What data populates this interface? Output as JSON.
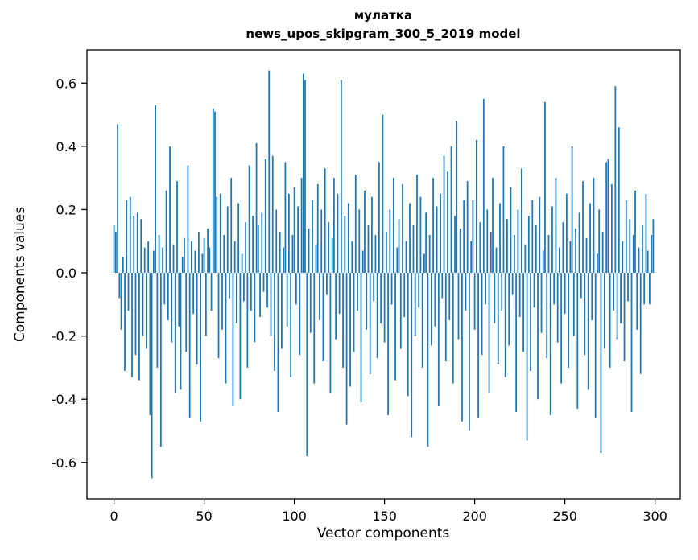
{
  "figure": {
    "title_line1": "мулатка",
    "title_line2": "news_upos_skipgram_300_5_2019 model",
    "xlabel": "Vector components",
    "ylabel": "Components values"
  },
  "chart_data": {
    "type": "bar",
    "title": "мулатка\nnews_upos_skipgram_300_5_2019 model",
    "xlabel": "Vector components",
    "ylabel": "Components values",
    "bar_color": "#1f77b4",
    "grid": false,
    "legend": "none",
    "x_start": 0,
    "xlim": [
      -15,
      314
    ],
    "ylim": [
      -0.715,
      0.705
    ],
    "x_ticks": [
      0,
      50,
      100,
      150,
      200,
      250,
      300
    ],
    "y_ticks": [
      -0.6,
      -0.4,
      -0.2,
      0.0,
      0.2,
      0.4,
      0.6
    ],
    "y_tick_labels": [
      "-0.6",
      "-0.4",
      "-0.2",
      "0.0",
      "0.2",
      "0.4",
      "0.6"
    ],
    "values": [
      0.15,
      0.13,
      0.47,
      -0.08,
      -0.18,
      0.05,
      -0.31,
      0.23,
      -0.12,
      0.24,
      -0.33,
      0.18,
      -0.26,
      0.19,
      -0.34,
      0.17,
      -0.2,
      0.08,
      -0.24,
      0.1,
      -0.45,
      -0.65,
      0.07,
      0.53,
      -0.3,
      0.12,
      -0.55,
      0.08,
      -0.1,
      0.26,
      -0.15,
      0.4,
      -0.22,
      0.09,
      -0.38,
      0.29,
      -0.17,
      -0.37,
      0.05,
      0.11,
      -0.25,
      0.34,
      -0.46,
      0.1,
      -0.13,
      0.07,
      -0.29,
      0.13,
      -0.47,
      0.06,
      0.11,
      -0.2,
      0.14,
      0.08,
      -0.12,
      0.52,
      0.51,
      0.24,
      -0.27,
      0.25,
      -0.18,
      0.12,
      -0.35,
      0.21,
      -0.08,
      0.3,
      -0.42,
      0.1,
      -0.16,
      0.22,
      -0.4,
      0.06,
      -0.09,
      0.16,
      -0.3,
      0.34,
      -0.12,
      0.18,
      -0.22,
      0.41,
      0.15,
      -0.14,
      0.19,
      -0.06,
      0.36,
      -0.11,
      0.64,
      -0.2,
      0.37,
      -0.31,
      0.2,
      -0.44,
      0.13,
      -0.24,
      0.08,
      0.35,
      -0.17,
      0.25,
      -0.33,
      0.12,
      0.27,
      -0.1,
      0.21,
      -0.26,
      0.3,
      0.63,
      0.61,
      -0.58,
      0.14,
      -0.19,
      0.23,
      -0.35,
      0.09,
      0.28,
      -0.15,
      0.2,
      -0.28,
      0.33,
      -0.07,
      0.16,
      -0.38,
      0.11,
      0.3,
      -0.21,
      0.25,
      -0.13,
      0.61,
      -0.3,
      0.18,
      -0.48,
      0.22,
      -0.36,
      0.1,
      -0.25,
      0.31,
      -0.12,
      0.2,
      -0.41,
      0.07,
      0.26,
      -0.18,
      0.15,
      -0.32,
      0.24,
      -0.09,
      0.12,
      -0.27,
      0.35,
      -0.16,
      0.5,
      -0.22,
      0.13,
      -0.45,
      0.2,
      -0.1,
      0.3,
      -0.34,
      0.08,
      0.17,
      -0.24,
      0.28,
      -0.14,
      0.1,
      -0.39,
      0.22,
      -0.52,
      0.15,
      -0.2,
      0.31,
      -0.11,
      0.24,
      -0.3,
      0.06,
      0.19,
      -0.55,
      0.12,
      -0.23,
      0.3,
      -0.17,
      0.21,
      -0.42,
      0.25,
      -0.08,
      0.37,
      -0.28,
      0.32,
      -0.15,
      0.4,
      -0.35,
      0.18,
      0.48,
      -0.21,
      0.14,
      -0.47,
      0.23,
      -0.12,
      0.29,
      -0.5,
      0.1,
      0.23,
      -0.18,
      0.42,
      -0.46,
      0.16,
      -0.26,
      0.55,
      -0.1,
      0.2,
      -0.38,
      0.13,
      0.3,
      -0.16,
      0.08,
      -0.29,
      0.22,
      -0.12,
      0.4,
      -0.33,
      0.17,
      -0.23,
      0.27,
      -0.07,
      0.12,
      -0.44,
      0.2,
      -0.14,
      0.33,
      -0.25,
      0.09,
      -0.53,
      0.18,
      -0.31,
      0.23,
      -0.11,
      0.15,
      -0.4,
      0.24,
      -0.19,
      0.07,
      0.54,
      -0.27,
      0.12,
      -0.45,
      0.21,
      -0.1,
      0.3,
      -0.22,
      0.08,
      -0.35,
      0.16,
      -0.13,
      0.25,
      -0.3,
      0.1,
      0.4,
      -0.2,
      0.14,
      -0.43,
      0.19,
      -0.08,
      0.29,
      -0.26,
      0.11,
      -0.37,
      0.22,
      -0.15,
      0.3,
      -0.46,
      0.06,
      0.2,
      -0.57,
      0.13,
      -0.24,
      0.35,
      0.36,
      -0.3,
      0.28,
      -0.12,
      0.59,
      -0.21,
      0.46,
      -0.16,
      0.1,
      -0.28,
      0.23,
      -0.09,
      0.17,
      -0.44,
      0.12,
      0.26,
      -0.18,
      0.08,
      -0.32,
      0.15,
      -0.1,
      0.25,
      0.07,
      -0.1,
      0.12,
      0.17
    ]
  }
}
